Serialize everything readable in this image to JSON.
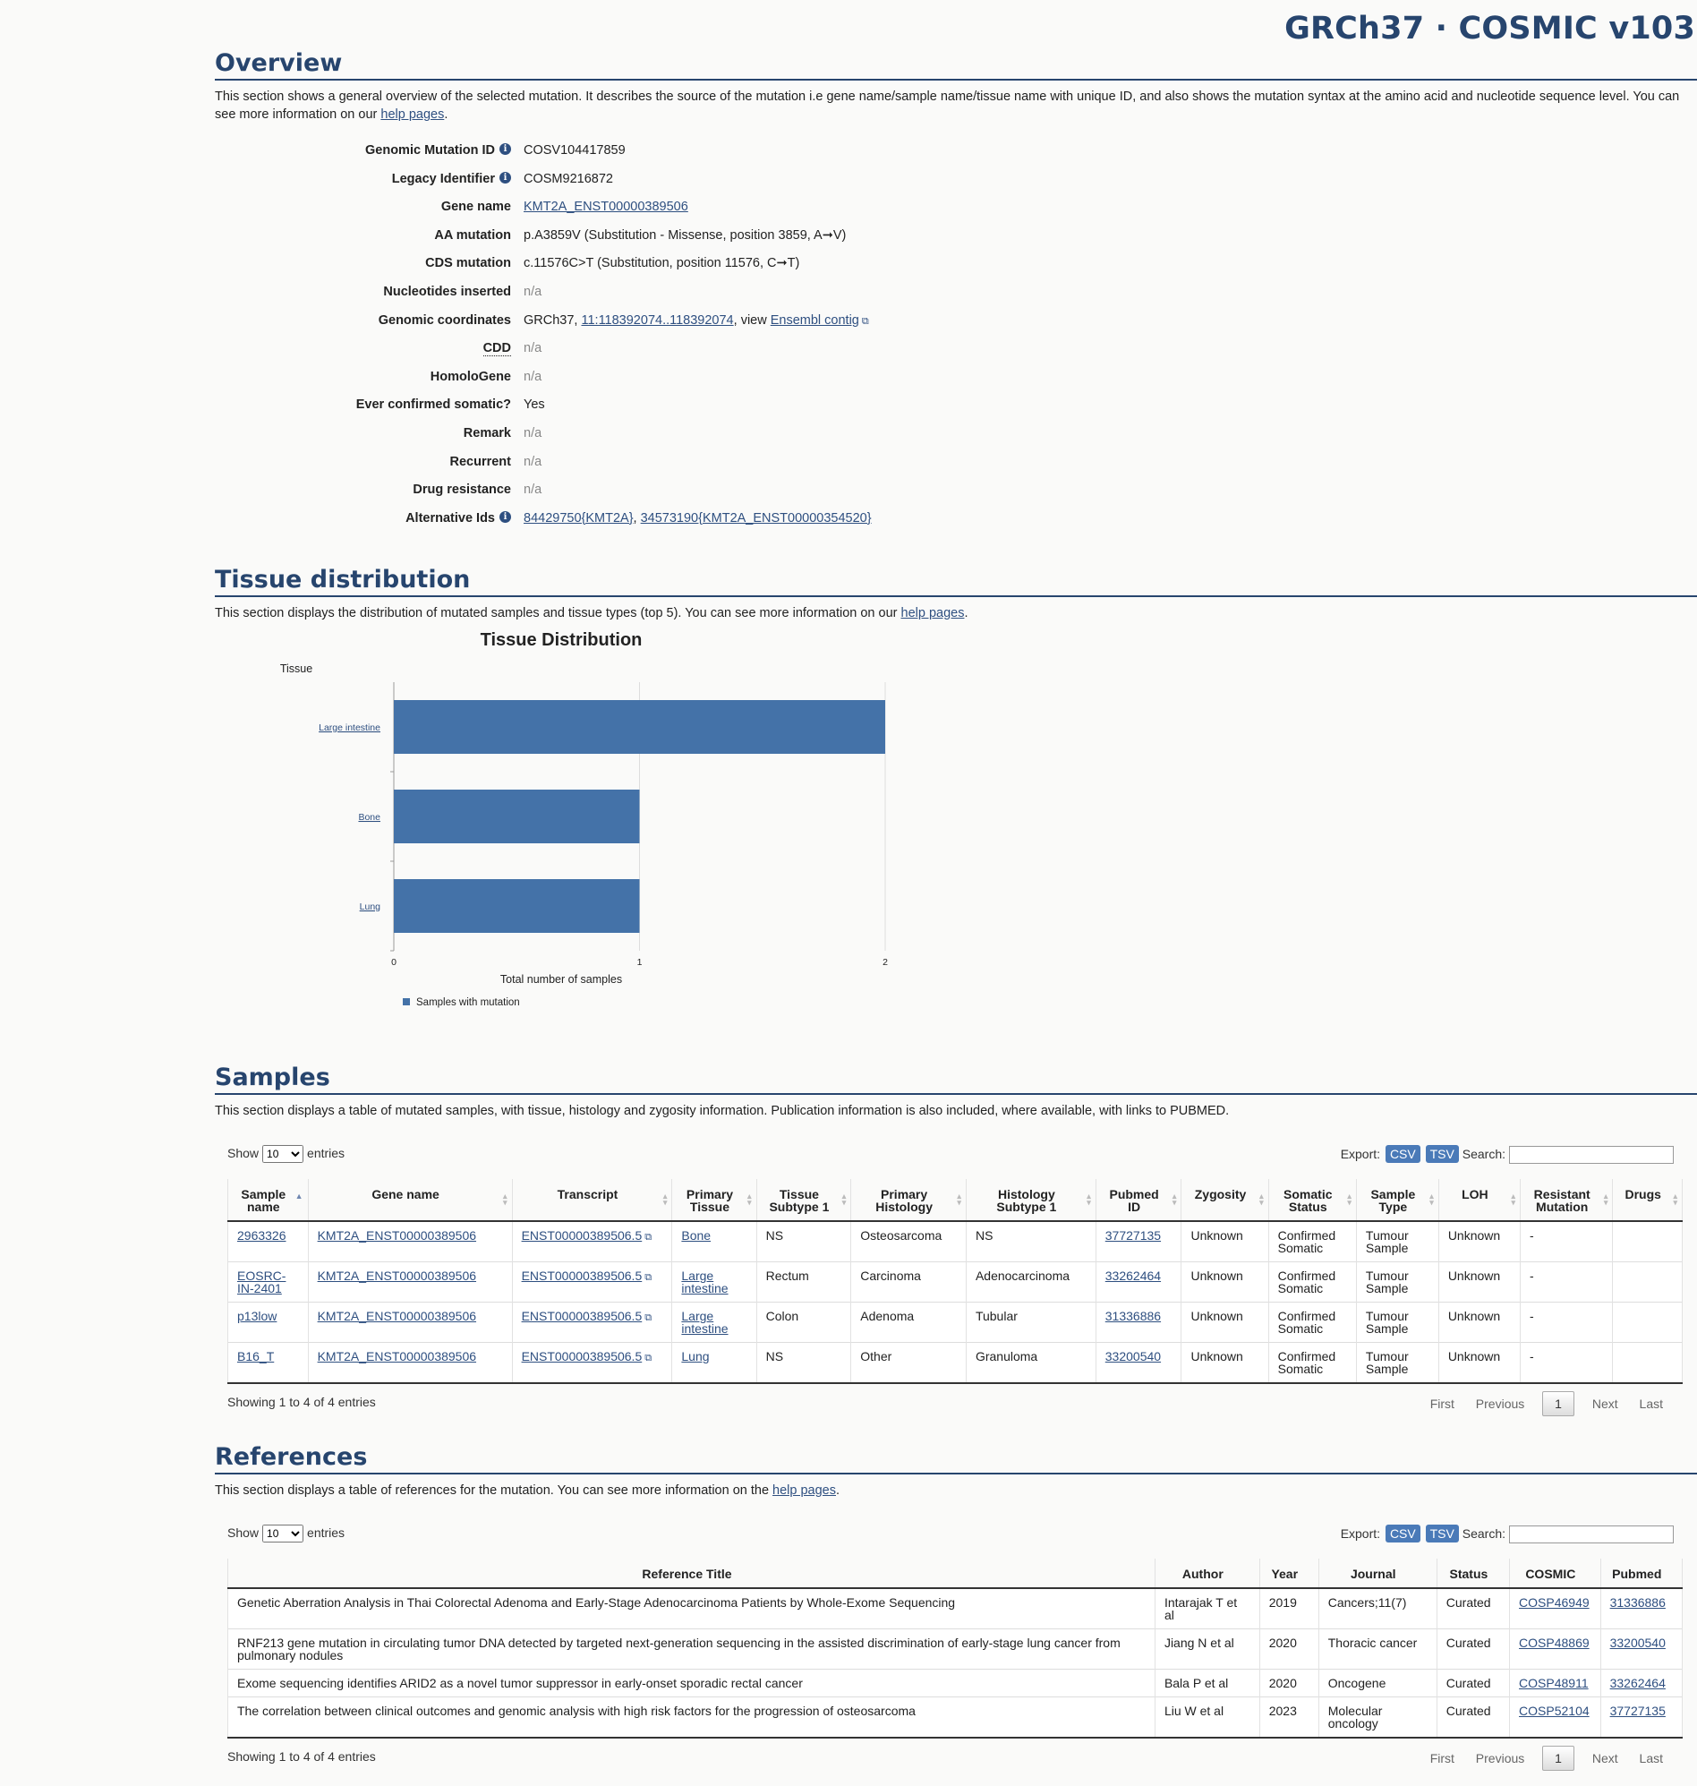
{
  "header": {
    "build": "GRCh37 · COSMIC v103"
  },
  "overview": {
    "title": "Overview",
    "intro_text": "This section shows a general overview of the selected mutation. It describes the source of the mutation i.e gene name/sample name/tissue name with unique ID, and also shows the mutation syntax at the amino acid and nucleotide sequence level. You can see more information on our ",
    "intro_link": "help pages",
    "intro_end": ".",
    "rows": [
      {
        "key": "Genomic Mutation ID",
        "value": "COSV104417859"
      },
      {
        "key": "Legacy Identifier",
        "value": "COSM9216872"
      },
      {
        "key": "Gene name",
        "value": "KMT2A_ENST00000389506"
      },
      {
        "key": "AA mutation",
        "value": "p.A3859V (Substitution - Missense, position 3859, A➞V)"
      },
      {
        "key": "CDS mutation",
        "value": "c.11576C>T (Substitution, position 11576, C➞T)"
      },
      {
        "key": "Nucleotides inserted",
        "value": "n/a"
      },
      {
        "key": "Genomic coordinates",
        "prefix": "GRCh37, ",
        "link1": "11:118392074..118392074",
        "mid": ", view ",
        "link2": "Ensembl contig"
      },
      {
        "key": "CDD",
        "value": "n/a"
      },
      {
        "key": "HomoloGene",
        "value": "n/a"
      },
      {
        "key": "Ever confirmed somatic?",
        "value": "Yes"
      },
      {
        "key": "Remark",
        "value": "n/a"
      },
      {
        "key": "Recurrent",
        "value": "n/a"
      },
      {
        "key": "Drug resistance",
        "value": "n/a"
      },
      {
        "key": "Alternative Ids",
        "link1": "84429750{KMT2A}",
        "sep": ", ",
        "link2": "34573190{KMT2A_ENST00000354520}"
      }
    ]
  },
  "tissue": {
    "title": "Tissue distribution",
    "intro_text": "This section displays the distribution of mutated samples and tissue types (top 5). You can see more information on our ",
    "intro_link": "help pages",
    "intro_end": "."
  },
  "chart_data": {
    "type": "bar",
    "orientation": "horizontal",
    "title": "Tissue Distribution",
    "ylabel": "Tissue",
    "xlabel": "Total number of samples",
    "categories": [
      "Large intestine",
      "Bone",
      "Lung"
    ],
    "series": [
      {
        "name": "Samples with mutation",
        "values": [
          2,
          1,
          1
        ]
      }
    ],
    "xlim": [
      0,
      2
    ],
    "xticks": [
      "0",
      "1",
      "2"
    ],
    "grid": true,
    "legend": "bottom",
    "color": "#4472a8"
  },
  "samples": {
    "title": "Samples",
    "intro_text": "This section displays a table of mutated samples, with tissue, histology and zygosity information. Publication information is also included, where available, with links to PUBMED.",
    "show_label": "Show",
    "show_value": "10",
    "entries_label": "entries",
    "export_label": "Export:",
    "csv": "CSV",
    "tsv": "TSV",
    "search_label": "Search:",
    "columns": [
      [
        "Sample",
        "name"
      ],
      [
        "Gene name"
      ],
      [
        "Transcript"
      ],
      [
        "Primary",
        "Tissue"
      ],
      [
        "Tissue",
        "Subtype 1"
      ],
      [
        "Primary",
        "Histology"
      ],
      [
        "Histology",
        "Subtype 1"
      ],
      [
        "Pubmed",
        "ID"
      ],
      [
        "Zygosity"
      ],
      [
        "Somatic",
        "Status"
      ],
      [
        "Sample",
        "Type"
      ],
      [
        "LOH"
      ],
      [
        "Resistant",
        "Mutation"
      ],
      [
        "Drugs"
      ]
    ],
    "rows": [
      [
        "2963326",
        "KMT2A_ENST00000389506",
        "ENST00000389506.5",
        "Bone",
        "NS",
        "Osteosarcoma",
        "NS",
        "37727135",
        "Unknown",
        "Confirmed Somatic",
        "Tumour Sample",
        "Unknown",
        "-",
        ""
      ],
      [
        "EOSRC-IN-2401",
        "KMT2A_ENST00000389506",
        "ENST00000389506.5",
        "Large intestine",
        "Rectum",
        "Carcinoma",
        "Adenocarcinoma",
        "33262464",
        "Unknown",
        "Confirmed Somatic",
        "Tumour Sample",
        "Unknown",
        "-",
        ""
      ],
      [
        "p13low",
        "KMT2A_ENST00000389506",
        "ENST00000389506.5",
        "Large intestine",
        "Colon",
        "Adenoma",
        "Tubular",
        "31336886",
        "Unknown",
        "Confirmed Somatic",
        "Tumour Sample",
        "Unknown",
        "-",
        ""
      ],
      [
        "B16_T",
        "KMT2A_ENST00000389506",
        "ENST00000389506.5",
        "Lung",
        "NS",
        "Other",
        "Granuloma",
        "33200540",
        "Unknown",
        "Confirmed Somatic",
        "Tumour Sample",
        "Unknown",
        "-",
        ""
      ]
    ],
    "showing": "Showing 1 to 4 of 4 entries",
    "pager": {
      "first": "First",
      "previous": "Previous",
      "current": "1",
      "next": "Next",
      "last": "Last"
    }
  },
  "references": {
    "title": "References",
    "intro_text": "This section displays a table of references for the mutation. You can see more information on the ",
    "intro_link": "help pages",
    "intro_end": ".",
    "show_label": "Show",
    "show_value": "10",
    "entries_label": "entries",
    "export_label": "Export:",
    "csv": "CSV",
    "tsv": "TSV",
    "search_label": "Search:",
    "columns": [
      "Reference Title",
      "Author",
      "Year",
      "Journal",
      "Status",
      "COSMIC",
      "Pubmed"
    ],
    "rows": [
      [
        "Genetic Aberration Analysis in Thai Colorectal Adenoma and Early-Stage Adenocarcinoma Patients by Whole-Exome Sequencing",
        "Intarajak T et al",
        "2019",
        "Cancers;11(7)",
        "Curated",
        "COSP46949",
        "31336886"
      ],
      [
        "RNF213 gene mutation in circulating tumor DNA detected by targeted next-generation sequencing in the assisted discrimination of early-stage lung cancer from pulmonary nodules",
        "Jiang N et al",
        "2020",
        "Thoracic cancer",
        "Curated",
        "COSP48869",
        "33200540"
      ],
      [
        "Exome sequencing identifies ARID2 as a novel tumor suppressor in early-onset sporadic rectal cancer",
        "Bala P et al",
        "2020",
        "Oncogene",
        "Curated",
        "COSP48911",
        "33262464"
      ],
      [
        "The correlation between clinical outcomes and genomic analysis with high risk factors for the progression of osteosarcoma",
        "Liu W et al",
        "2023",
        "Molecular oncology",
        "Curated",
        "COSP52104",
        "37727135"
      ]
    ],
    "showing": "Showing 1 to 4 of 4 entries",
    "pager": {
      "first": "First",
      "previous": "Previous",
      "current": "1",
      "next": "Next",
      "last": "Last"
    }
  }
}
